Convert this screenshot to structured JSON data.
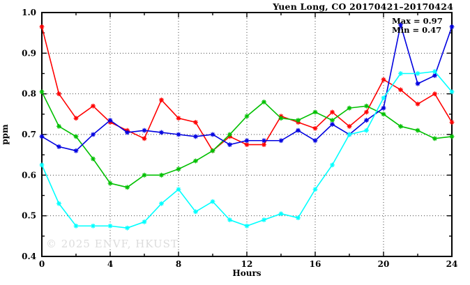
{
  "header": {
    "title": "Yuen Long, CO 20170421–20170424"
  },
  "annotations": {
    "max_label": "Max = 0.97",
    "min_label": "Min = 0.47"
  },
  "watermark": "© 2025 ENVF, HKUST",
  "chart_data": {
    "type": "line",
    "title": "Yuen Long, CO 20170421–20170424",
    "xlabel": "Hours",
    "ylabel": "ppm",
    "xlim": [
      0,
      24
    ],
    "ylim": [
      0.4,
      1.0
    ],
    "xticks": [
      0,
      4,
      8,
      12,
      16,
      20,
      24
    ],
    "yticks": [
      0.4,
      0.5,
      0.6,
      0.7,
      0.8,
      0.9,
      1.0
    ],
    "x_minor_step": 2,
    "y_minor_step": 0.05,
    "grid": true,
    "legend_position": "none",
    "marker": "asterisk",
    "x": [
      0,
      1,
      2,
      3,
      4,
      5,
      6,
      7,
      8,
      9,
      10,
      11,
      12,
      13,
      14,
      15,
      16,
      17,
      18,
      19,
      20,
      21,
      22,
      23,
      24
    ],
    "series": [
      {
        "name": "series-red",
        "color": "#ff0000",
        "values": [
          0.965,
          0.8,
          0.74,
          0.77,
          0.73,
          0.71,
          0.69,
          0.785,
          0.74,
          0.73,
          0.66,
          0.695,
          0.675,
          0.675,
          0.745,
          0.73,
          0.715,
          0.755,
          0.72,
          0.755,
          0.835,
          0.81,
          0.775,
          0.8,
          0.73
        ]
      },
      {
        "name": "series-green",
        "color": "#00c000",
        "values": [
          0.805,
          0.72,
          0.695,
          0.64,
          0.58,
          0.57,
          0.6,
          0.6,
          0.615,
          0.635,
          0.66,
          0.7,
          0.745,
          0.78,
          0.74,
          0.735,
          0.755,
          0.735,
          0.765,
          0.77,
          0.75,
          0.72,
          0.71,
          0.69,
          0.695
        ]
      },
      {
        "name": "series-blue",
        "color": "#0000e0",
        "values": [
          0.695,
          0.67,
          0.66,
          0.7,
          0.735,
          0.705,
          0.71,
          0.705,
          0.7,
          0.695,
          0.7,
          0.675,
          0.685,
          0.685,
          0.685,
          0.71,
          0.685,
          0.725,
          0.7,
          0.735,
          0.765,
          0.97,
          0.825,
          0.845,
          0.965
        ]
      },
      {
        "name": "series-cyan",
        "color": "#00ffff",
        "values": [
          0.625,
          0.53,
          0.475,
          0.475,
          0.475,
          0.47,
          0.485,
          0.53,
          0.565,
          0.51,
          0.535,
          0.49,
          0.475,
          0.49,
          0.505,
          0.495,
          0.565,
          0.625,
          0.7,
          0.71,
          0.79,
          0.85,
          0.85,
          0.855,
          0.805
        ]
      }
    ],
    "stats": {
      "max": 0.97,
      "min": 0.47
    }
  }
}
